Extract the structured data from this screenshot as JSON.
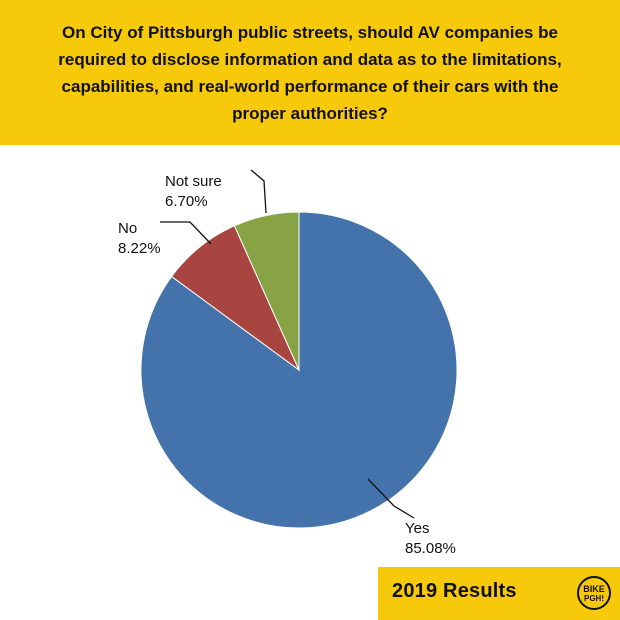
{
  "header": {
    "question": "On City of Pittsburgh public streets, should AV companies be required to disclose information and data as to the limitations, capabilities, and real-world performance of their cars with the proper authorities?"
  },
  "chart_data": {
    "type": "pie",
    "title": "",
    "slices": [
      {
        "label": "Yes",
        "value": 85.08,
        "value_text": "85.08%",
        "color": "#4472aa"
      },
      {
        "label": "No",
        "value": 8.22,
        "value_text": "8.22%",
        "color": "#a84541"
      },
      {
        "label": "Not sure",
        "value": 6.7,
        "value_text": "6.70%",
        "color": "#87a346"
      }
    ],
    "start_angle": "12 o'clock",
    "direction": "clockwise"
  },
  "footer": {
    "label": "2019 Results",
    "logo_line1": "BIKE",
    "logo_line2": "PGH!"
  },
  "colors": {
    "brand_yellow": "#f7c90b",
    "text": "#111111"
  }
}
